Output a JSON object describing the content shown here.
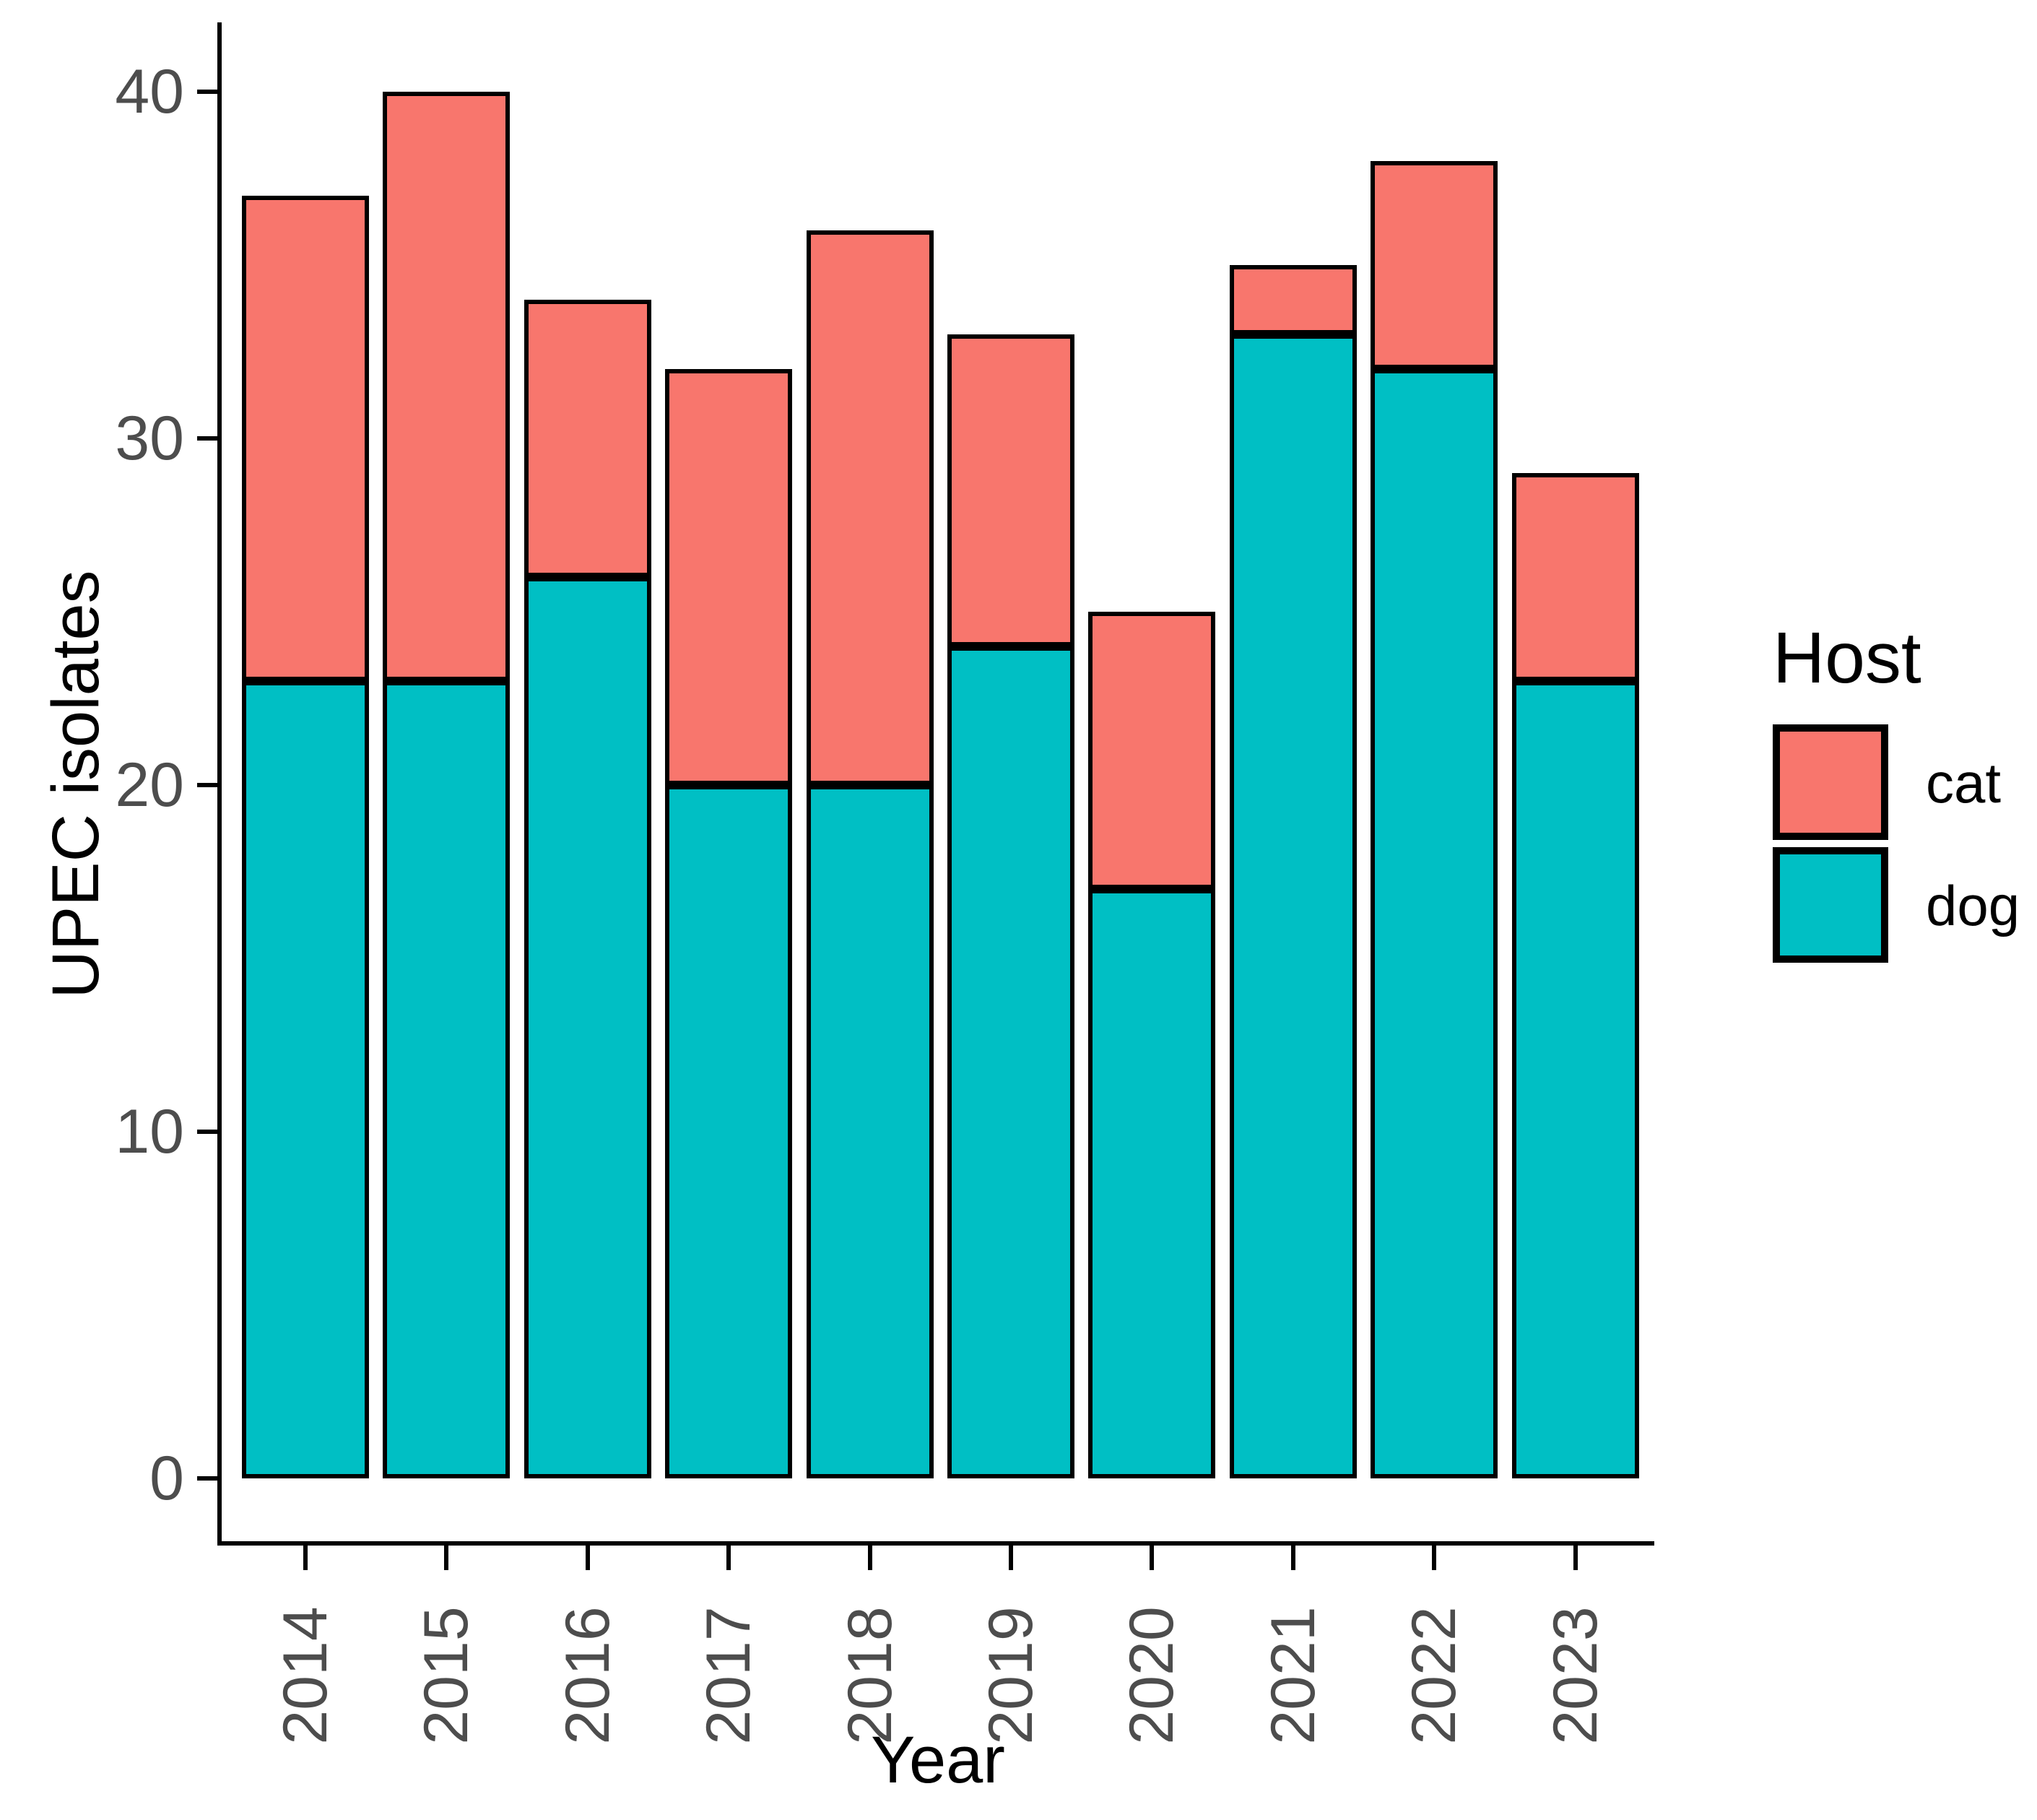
{
  "chart_data": {
    "type": "bar",
    "stacked": true,
    "title": "",
    "xlabel": "Year",
    "ylabel": "UPEC isolates",
    "categories": [
      "2014",
      "2015",
      "2016",
      "2017",
      "2018",
      "2019",
      "2020",
      "2021",
      "2022",
      "2023"
    ],
    "series": [
      {
        "name": "dog",
        "color": "#00BFC4",
        "values": [
          23,
          23,
          26,
          20,
          20,
          24,
          17,
          33,
          32,
          23
        ]
      },
      {
        "name": "cat",
        "color": "#F8766D",
        "values": [
          14,
          17,
          8,
          12,
          16,
          9,
          8,
          2,
          6,
          6
        ]
      }
    ],
    "stack_order_bottom_to_top": [
      "dog",
      "cat"
    ],
    "totals": [
      37,
      40,
      34,
      32,
      36,
      33,
      25,
      35,
      38,
      29
    ],
    "yticks": [
      0,
      10,
      20,
      30,
      40
    ],
    "ylim": [
      0,
      42
    ],
    "grid": false,
    "bar_outline_color": "#000000",
    "axis_line_color": "#000000",
    "axis_tick_text_color": "#4D4D4D",
    "axis_title_color": "#000000",
    "legend": {
      "title": "Host",
      "position": "right",
      "entries": [
        {
          "label": "cat",
          "color": "#F8766D"
        },
        {
          "label": "dog",
          "color": "#00BFC4"
        }
      ]
    }
  }
}
